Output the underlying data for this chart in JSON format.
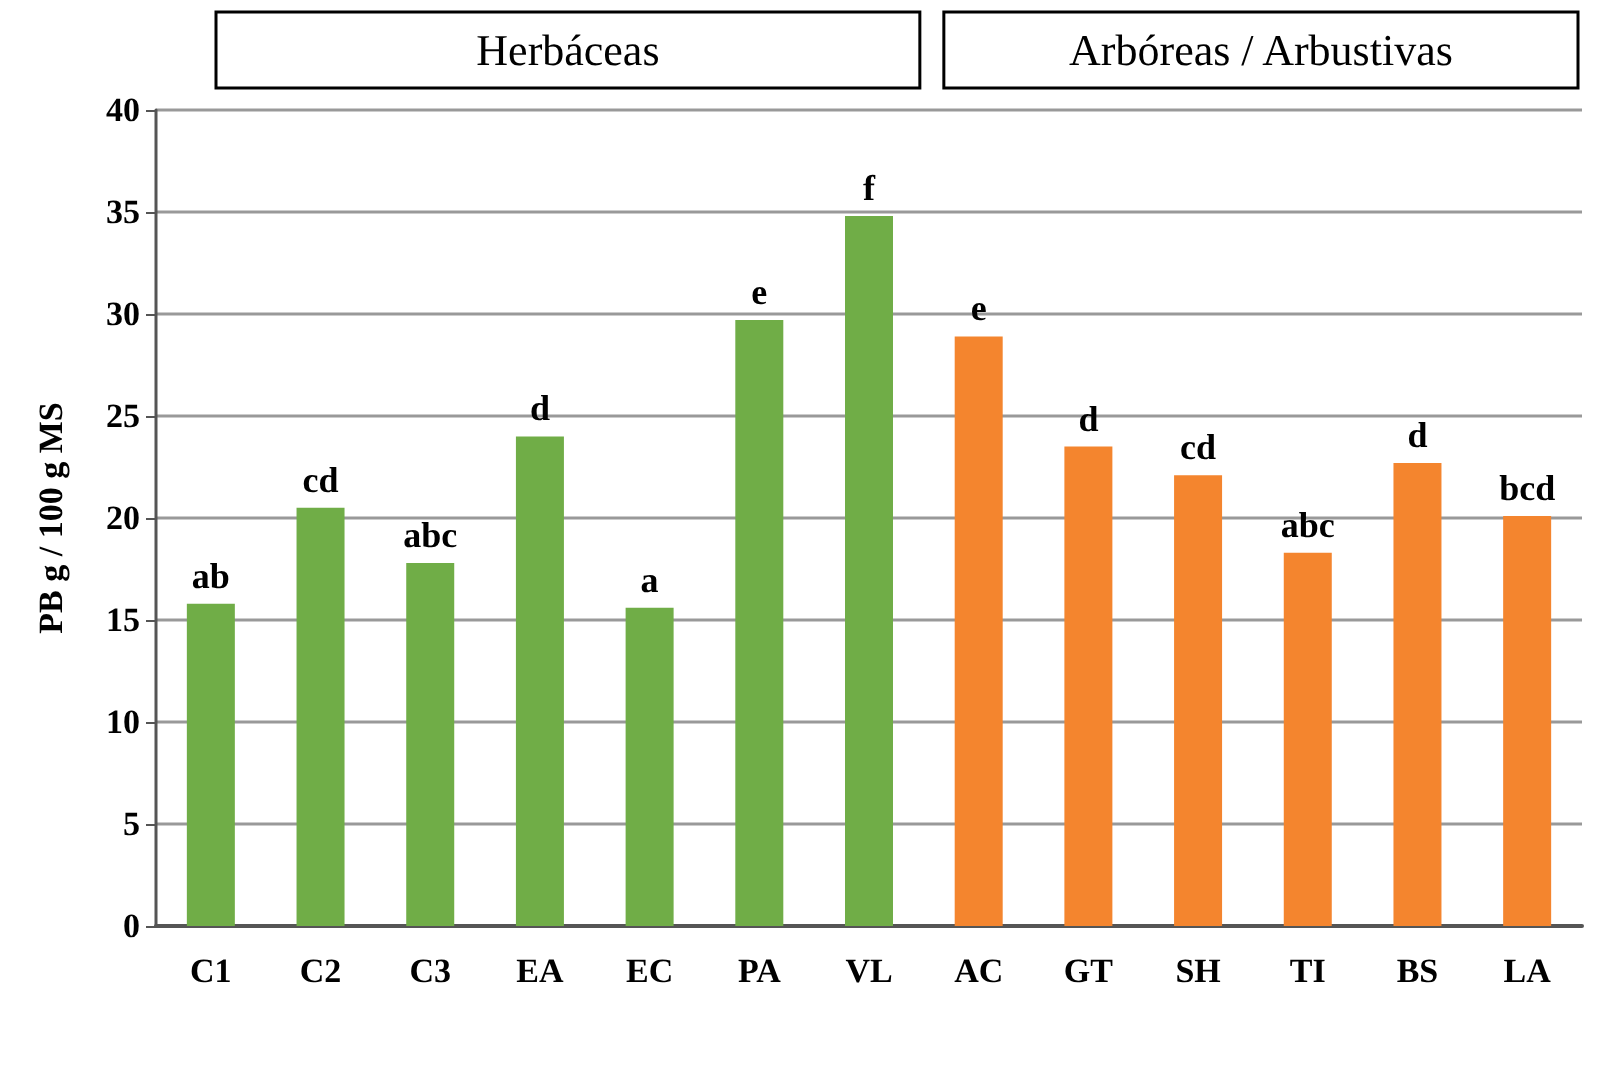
{
  "chart_data": {
    "type": "bar",
    "ylabel": "PB g / 100 g MS",
    "categories": [
      "C1",
      "C2",
      "C3",
      "EA",
      "EC",
      "PA",
      "VL",
      "AC",
      "GT",
      "SH",
      "TI",
      "BS",
      "LA"
    ],
    "values": [
      15.8,
      20.5,
      17.8,
      24.0,
      15.6,
      29.7,
      34.8,
      28.9,
      23.5,
      22.1,
      18.3,
      22.7,
      20.1
    ],
    "colors": [
      "#70ad47",
      "#70ad47",
      "#70ad47",
      "#70ad47",
      "#70ad47",
      "#70ad47",
      "#70ad47",
      "#f4852e",
      "#f4852e",
      "#f4852e",
      "#f4852e",
      "#f4852e",
      "#f4852e"
    ],
    "value_labels": [
      "ab",
      "cd",
      "abc",
      "d",
      "a",
      "e",
      "f",
      "e",
      "d",
      "cd",
      "abc",
      "d",
      "bcd"
    ],
    "annotations": [
      "Herbáceas",
      "Arbóreas / Arbustivas"
    ],
    "ylim": [
      0,
      40
    ],
    "yticks": [
      0,
      5,
      10,
      15,
      20,
      25,
      30,
      35,
      40
    ],
    "grid": "y"
  }
}
